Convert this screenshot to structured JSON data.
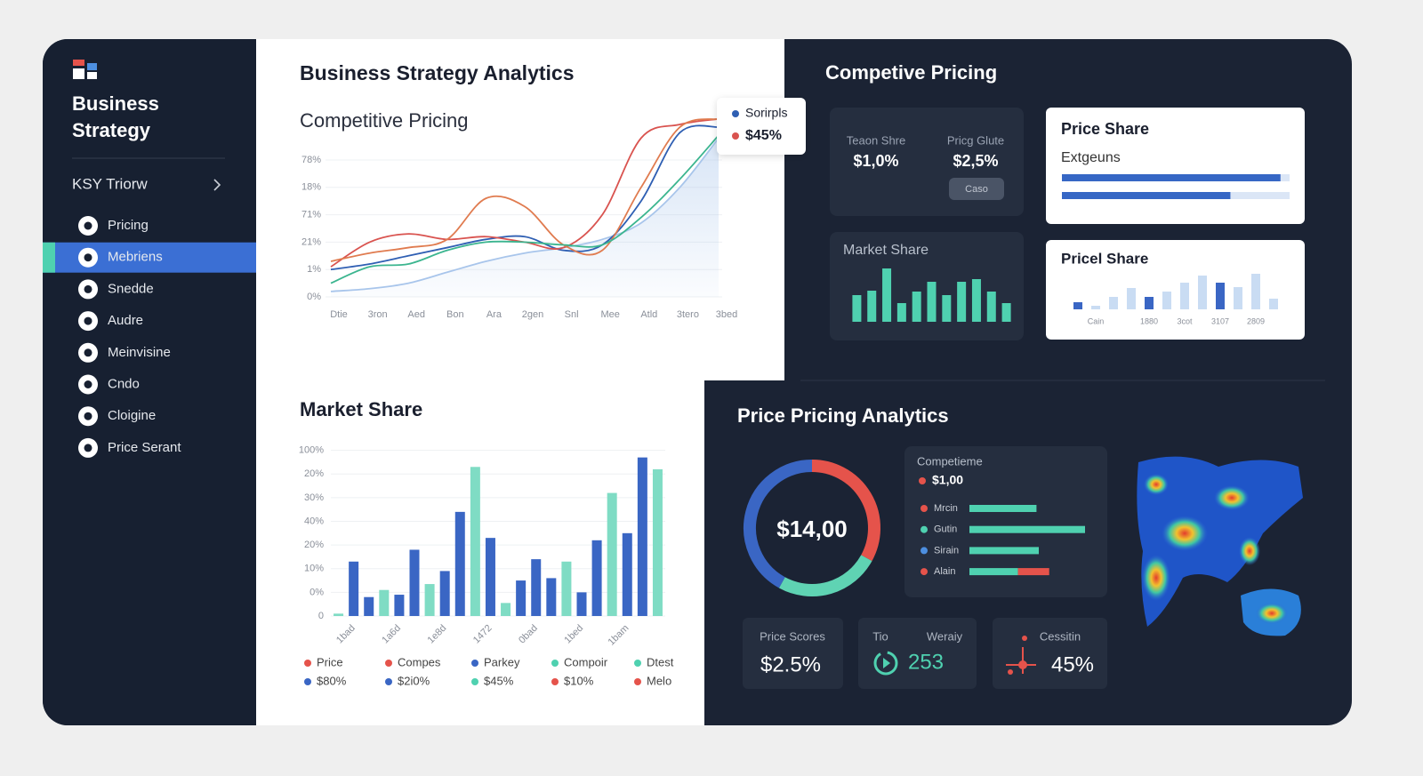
{
  "sidebar": {
    "brand": [
      "Business",
      "Strategy"
    ],
    "section": "KSY Triorw",
    "menu": [
      "Pricing",
      "Mebriens",
      "Snedde",
      "Audre",
      "Meinvisine",
      "Cndo",
      "Cloigine",
      "Price Serant"
    ],
    "active_item": 1
  },
  "header": {
    "title": "Business Strategy Analytics"
  },
  "panels": {
    "top_right_title": "Competive Pricing",
    "bottom_right_title": "Price Pricing Analytics"
  },
  "pricing_cards": {
    "items": [
      {
        "label": "Teaon Shre",
        "value": "$1,0%"
      },
      {
        "label": "Pricg Glute",
        "value": "$2,5%"
      }
    ],
    "button": "Caso"
  },
  "kpis": [
    {
      "label": "Price Scores",
      "value": "$2.5%"
    },
    {
      "labels": [
        "Tio",
        "Weraiy"
      ],
      "value": 253
    },
    {
      "label": "Cessitin",
      "value": "45%"
    }
  ],
  "chart_data": [
    {
      "type": "line",
      "title": "Competitive Pricing",
      "categories": [
        "Dtie",
        "3ron",
        "Aed",
        "Bon",
        "Ara",
        "2gen",
        "Snl",
        "Mee",
        "Atld",
        "3tero",
        "3bed"
      ],
      "series": [
        {
          "name": "Sorirpls",
          "color": "#2f5fb3",
          "values": [
            1.0,
            1.2,
            1.5,
            1.8,
            2.1,
            2.2,
            1.7,
            1.9,
            3.5,
            6.0,
            6.2
          ]
        },
        {
          "name": "$45%",
          "color": "#d9534f",
          "values": [
            1.1,
            2.0,
            2.3,
            2.1,
            2.2,
            2.0,
            1.8,
            3.0,
            5.8,
            6.3,
            6.5
          ]
        },
        {
          "color": "#e07b4f",
          "values": [
            1.3,
            1.6,
            1.8,
            2.1,
            3.6,
            3.3,
            1.9,
            1.7,
            4.0,
            6.2,
            6.5
          ]
        },
        {
          "color": "#3bb58f",
          "values": [
            0.5,
            1.1,
            1.2,
            1.7,
            2.0,
            2.0,
            1.9,
            1.9,
            2.9,
            4.3,
            5.9
          ]
        },
        {
          "color": "#a8c5eb",
          "area": true,
          "values": [
            0.2,
            0.3,
            0.5,
            0.9,
            1.3,
            1.6,
            1.8,
            2.1,
            2.7,
            4.0,
            5.8
          ]
        }
      ],
      "ylim": [
        0,
        7
      ],
      "yticks": [
        {
          "value": 0,
          "label": "0%"
        },
        {
          "value": 1,
          "label": "1%"
        },
        {
          "value": 2,
          "label": "21%"
        },
        {
          "value": 3,
          "label": "71%"
        },
        {
          "value": 4,
          "label": "18%"
        },
        {
          "value": 5,
          "label": "78%"
        }
      ],
      "grid": true,
      "legend": "top-right"
    },
    {
      "type": "bar",
      "title": "Market Share",
      "categories": [
        null,
        "1bad",
        null,
        null,
        "1a6d",
        null,
        null,
        "1e8d",
        null,
        null,
        "1472",
        null,
        null,
        "0bad",
        null,
        null,
        "1bed",
        null,
        null,
        "1bam",
        null,
        null
      ],
      "values": [
        0.1,
        2.3,
        0.8,
        1.1,
        0.9,
        2.8,
        1.35,
        1.9,
        4.4,
        6.3,
        3.3,
        0.55,
        1.5,
        2.4,
        1.6,
        2.3,
        1.0,
        3.2,
        5.2,
        3.5,
        6.7,
        6.2
      ],
      "colors": [
        "#7fdcc4",
        "#3a66c4",
        "#3a66c4",
        "#7fdcc4",
        "#3a66c4",
        "#3a66c4",
        "#7fdcc4",
        "#3a66c4",
        "#3a66c4",
        "#7fdcc4",
        "#3a66c4",
        "#7fdcc4",
        "#3a66c4",
        "#3a66c4",
        "#3a66c4",
        "#7fdcc4",
        "#3a66c4",
        "#3a66c4",
        "#7fdcc4",
        "#3a66c4",
        "#3a66c4",
        "#7fdcc4"
      ],
      "ylim": [
        0,
        7.4
      ],
      "yticks": [
        0,
        {
          "value": 1,
          "label": "0%"
        },
        {
          "value": 2,
          "label": "10%"
        },
        {
          "value": 3,
          "label": "20%"
        },
        {
          "value": 4,
          "label": "40%"
        },
        {
          "value": 5,
          "label": "30%"
        },
        {
          "value": 6,
          "label": "20%"
        },
        {
          "value": 7,
          "label": "100%"
        }
      ],
      "grid": true,
      "legend": [
        {
          "label": "Price",
          "color": "#e5534b"
        },
        {
          "label": "Compes",
          "color": "#e5534b"
        },
        {
          "label": "Parkey",
          "color": "#3a66c4"
        },
        {
          "label": "Compoir",
          "color": "#4fd1b0"
        },
        {
          "label": "Dtest",
          "color": "#4fd1b0"
        },
        {
          "label": "$80%",
          "color": "#3a66c4"
        },
        {
          "label": "$2i0%",
          "color": "#3a66c4"
        },
        {
          "label": "$45%",
          "color": "#4fd1b0"
        },
        {
          "label": "$10%",
          "color": "#e5534b"
        },
        {
          "label": "Melo",
          "color": "#e5534b"
        }
      ]
    },
    {
      "type": "bar",
      "title": "Market Share",
      "values": [
        30,
        35,
        60,
        21,
        34,
        45,
        30,
        45,
        48,
        34,
        21
      ],
      "color": "#4fd1b0",
      "ylim": [
        0,
        70
      ]
    },
    {
      "type": "progress",
      "title": "Price Share",
      "subtitle": "Extgeuns",
      "values": [
        96,
        74
      ],
      "color": "#3667c5",
      "track_color": "#dbe6f6",
      "xlim": [
        0,
        100
      ]
    },
    {
      "type": "bar",
      "title": "Pricel Share",
      "categories": [
        null,
        "Cain",
        null,
        null,
        "1880",
        null,
        "3cot",
        null,
        "3107",
        null,
        "2809",
        null
      ],
      "values": [
        8,
        4,
        14,
        24,
        14,
        20,
        30,
        38,
        30,
        25,
        40,
        12
      ],
      "colors": [
        "#3a66c4",
        "#c9dcf3",
        "#c9dcf3",
        "#c9dcf3",
        "#3a66c4",
        "#c9dcf3",
        "#c9dcf3",
        "#c9dcf3",
        "#3a66c4",
        "#c9dcf3",
        "#c9dcf3",
        "#c9dcf3"
      ],
      "ylim": [
        0,
        45
      ]
    },
    {
      "type": "donut",
      "center_label": "$14,00",
      "values": [
        33,
        25,
        42
      ],
      "colors": [
        "#e5534b",
        "#5fd3b3",
        "#3a66c4"
      ]
    },
    {
      "type": "stacked-bar-h",
      "title": "Competieme",
      "title_dot_color": "#e5534b",
      "value_text": "$1,00",
      "categories": [
        "Mrcin",
        "Gutin",
        "Sirain",
        "Alain"
      ],
      "dot_colors": [
        "#e5534b",
        "#4fd1b0",
        "#4d8fe0",
        "#e5534b"
      ],
      "series": [
        {
          "color": "#4fd1b0",
          "values": [
            58,
            100,
            60,
            42
          ]
        },
        {
          "color": "#e5534b",
          "values": [
            null,
            null,
            null,
            27
          ]
        }
      ],
      "xlim": [
        0,
        100
      ]
    }
  ]
}
